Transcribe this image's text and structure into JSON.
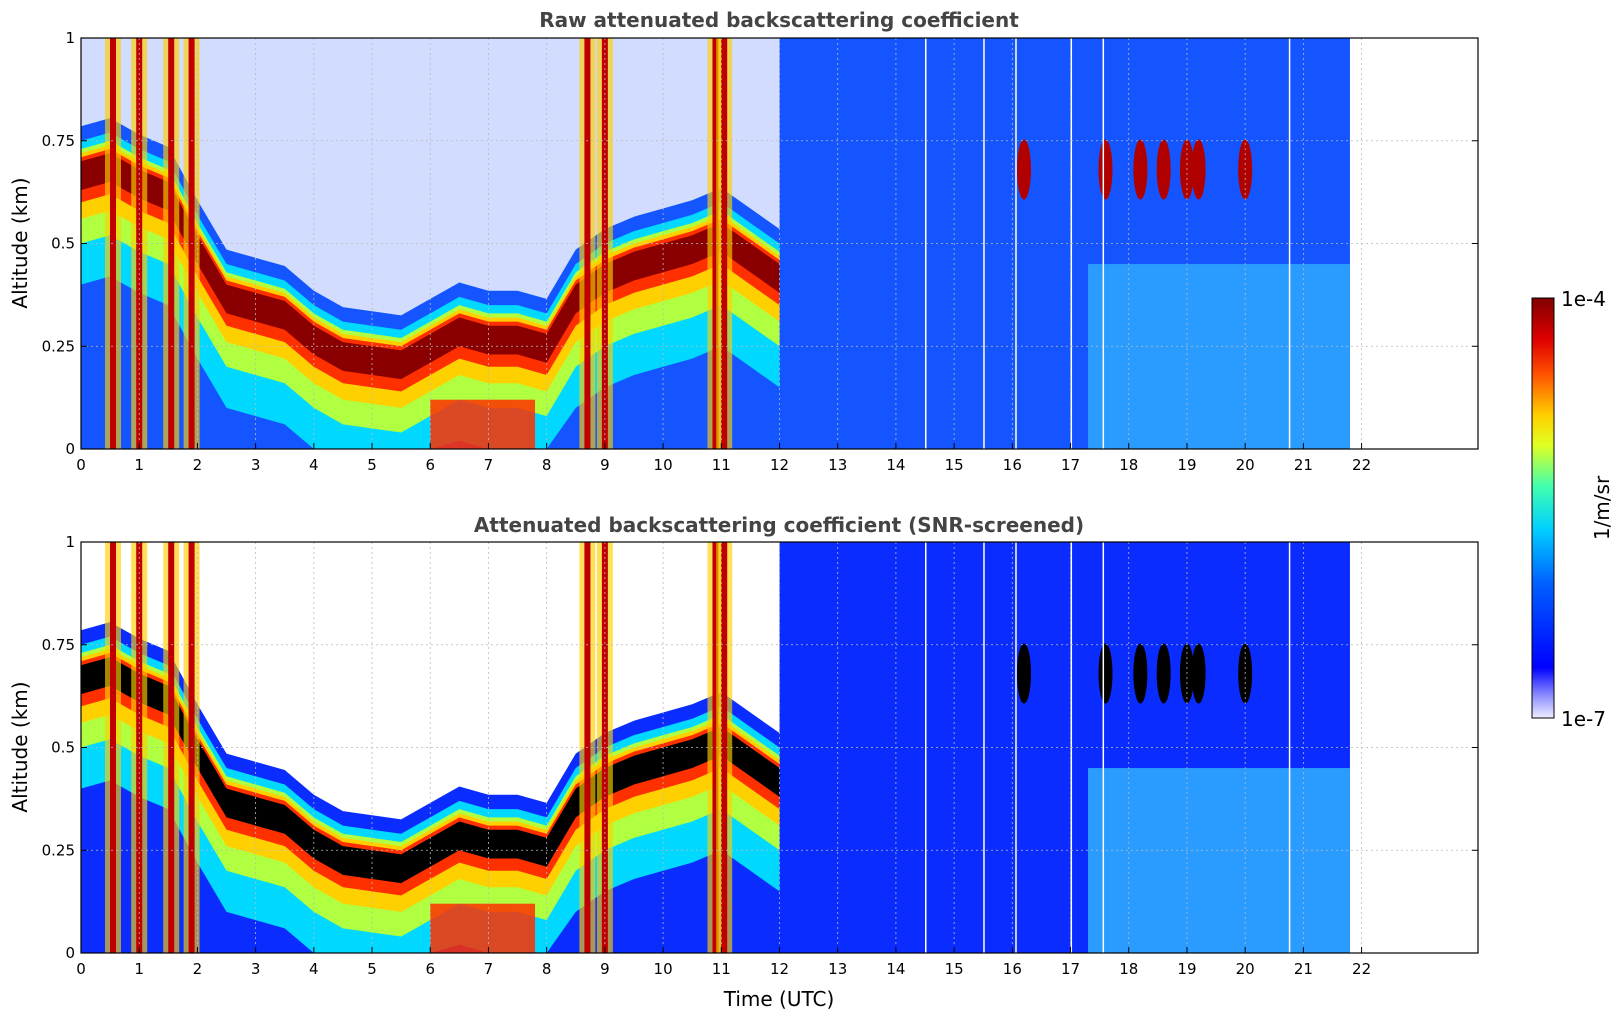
{
  "chart_data": [
    {
      "type": "heatmap",
      "title": "Raw attenuated backscattering coefficient",
      "xlabel": "",
      "ylabel": "Altitude (km)",
      "xlim": [
        0,
        24
      ],
      "ylim": [
        0,
        1
      ],
      "x_ticks": [
        0,
        1,
        2,
        3,
        4,
        5,
        6,
        7,
        8,
        9,
        10,
        11,
        12,
        13,
        14,
        15,
        16,
        17,
        18,
        19,
        20,
        21,
        22
      ],
      "y_ticks": [
        0,
        0.25,
        0.5,
        0.75,
        1
      ],
      "y_tick_labels": [
        "0",
        "0.25",
        "0.5",
        "0.75",
        "1"
      ],
      "grid": true,
      "data_end_time": 21.8,
      "boundary_layer_top": [
        {
          "x": 0.0,
          "y": 0.7
        },
        {
          "x": 0.5,
          "y": 0.72
        },
        {
          "x": 1.0,
          "y": 0.68
        },
        {
          "x": 1.5,
          "y": 0.65
        },
        {
          "x": 2.0,
          "y": 0.52
        },
        {
          "x": 2.5,
          "y": 0.4
        },
        {
          "x": 3.0,
          "y": 0.38
        },
        {
          "x": 3.5,
          "y": 0.36
        },
        {
          "x": 4.0,
          "y": 0.3
        },
        {
          "x": 4.5,
          "y": 0.26
        },
        {
          "x": 5.0,
          "y": 0.25
        },
        {
          "x": 5.5,
          "y": 0.24
        },
        {
          "x": 6.0,
          "y": 0.28
        },
        {
          "x": 6.5,
          "y": 0.32
        },
        {
          "x": 7.0,
          "y": 0.3
        },
        {
          "x": 7.5,
          "y": 0.3
        },
        {
          "x": 8.0,
          "y": 0.28
        },
        {
          "x": 8.5,
          "y": 0.4
        },
        {
          "x": 9.0,
          "y": 0.45
        },
        {
          "x": 9.5,
          "y": 0.48
        },
        {
          "x": 10.0,
          "y": 0.5
        },
        {
          "x": 10.5,
          "y": 0.52
        },
        {
          "x": 11.0,
          "y": 0.55
        },
        {
          "x": 11.5,
          "y": 0.5
        },
        {
          "x": 12.0,
          "y": 0.45
        }
      ]
    },
    {
      "type": "heatmap",
      "title": "Attenuated backscattering coefficient (SNR-screened)",
      "xlabel": "Time (UTC)",
      "ylabel": "Altitude (km)",
      "xlim": [
        0,
        24
      ],
      "ylim": [
        0,
        1
      ],
      "x_ticks": [
        0,
        1,
        2,
        3,
        4,
        5,
        6,
        7,
        8,
        9,
        10,
        11,
        12,
        13,
        14,
        15,
        16,
        17,
        18,
        19,
        20,
        21,
        22
      ],
      "y_ticks": [
        0,
        0.25,
        0.5,
        0.75,
        1
      ],
      "y_tick_labels": [
        "0",
        "0.25",
        "0.5",
        "0.75",
        "1"
      ],
      "grid": true,
      "data_end_time": 21.8,
      "boundary_layer_top": [
        {
          "x": 0.0,
          "y": 0.7
        },
        {
          "x": 0.5,
          "y": 0.72
        },
        {
          "x": 1.0,
          "y": 0.68
        },
        {
          "x": 1.5,
          "y": 0.65
        },
        {
          "x": 2.0,
          "y": 0.52
        },
        {
          "x": 2.5,
          "y": 0.4
        },
        {
          "x": 3.0,
          "y": 0.38
        },
        {
          "x": 3.5,
          "y": 0.36
        },
        {
          "x": 4.0,
          "y": 0.3
        },
        {
          "x": 4.5,
          "y": 0.26
        },
        {
          "x": 5.0,
          "y": 0.25
        },
        {
          "x": 5.5,
          "y": 0.24
        },
        {
          "x": 6.0,
          "y": 0.28
        },
        {
          "x": 6.5,
          "y": 0.32
        },
        {
          "x": 7.0,
          "y": 0.3
        },
        {
          "x": 7.5,
          "y": 0.3
        },
        {
          "x": 8.0,
          "y": 0.28
        },
        {
          "x": 8.5,
          "y": 0.4
        },
        {
          "x": 9.0,
          "y": 0.45
        },
        {
          "x": 9.5,
          "y": 0.48
        },
        {
          "x": 10.0,
          "y": 0.5
        },
        {
          "x": 10.5,
          "y": 0.52
        },
        {
          "x": 11.0,
          "y": 0.55
        },
        {
          "x": 11.5,
          "y": 0.5
        },
        {
          "x": 12.0,
          "y": 0.45
        }
      ]
    }
  ],
  "colorbar": {
    "label": "1/m/sr",
    "max_label": "1e-4",
    "min_label": "1e-7",
    "scale": "log",
    "range": [
      1e-07,
      0.0001
    ],
    "colormap": "jet",
    "colors": {
      "high": "#800000",
      "red": "#ff2000",
      "yellow": "#ffff00",
      "cyan": "#00e0ff",
      "blue": "#0040ff",
      "low": "#e8e8ff"
    }
  }
}
